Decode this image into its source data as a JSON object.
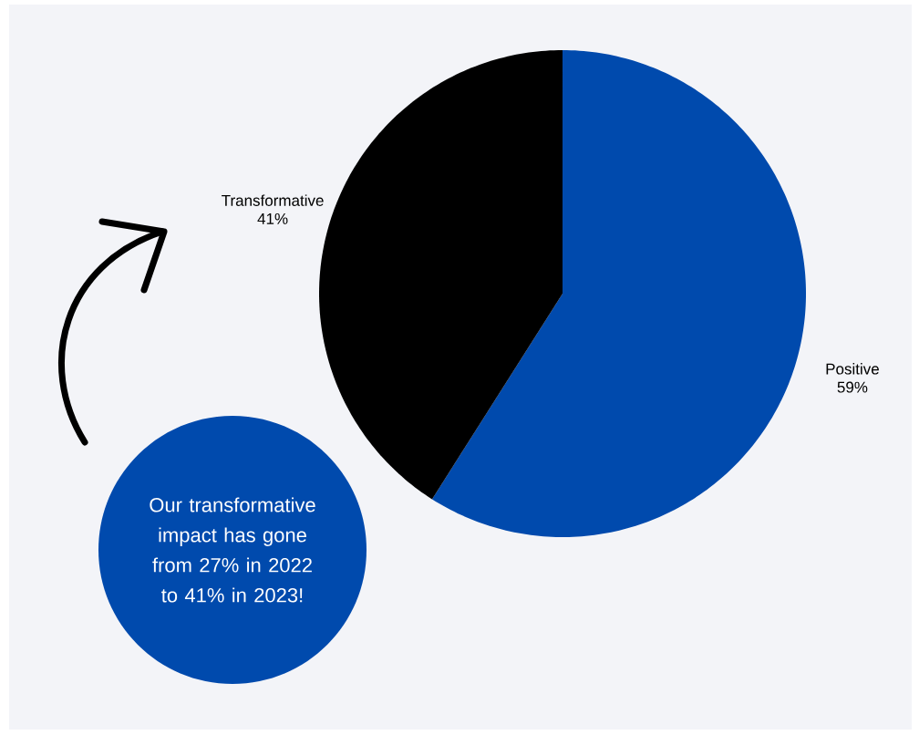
{
  "chart_data": {
    "type": "pie",
    "categories": [
      "Positive",
      "Transformative"
    ],
    "values": [
      59,
      41
    ],
    "colors": [
      "#004aad",
      "#000000"
    ],
    "value_labels": [
      "59%",
      "41%"
    ],
    "annotations": [
      "Our transformative impact has gone from 27% in 2022 to 41% in 2023!"
    ]
  }
}
